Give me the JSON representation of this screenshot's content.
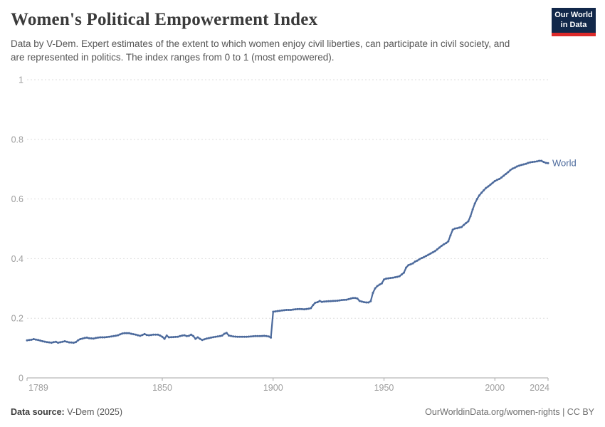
{
  "header": {
    "title": "Women's Political Empowerment Index",
    "subtitle": "Data by V-Dem. Expert estimates of the extent to which women enjoy civil liberties, can participate in civil society, and are represented in politics. The index ranges from 0 to 1 (most empowered).",
    "logo_line1": "Our World",
    "logo_line2": "in Data",
    "logo_bg_color": "#12284a",
    "logo_bar_color": "#dc2a2a"
  },
  "footer": {
    "data_source_label": "Data source:",
    "data_source_value": "V-Dem (2025)",
    "link_text": "OurWorldinData.org/women-rights | CC BY"
  },
  "chart_data": {
    "type": "line",
    "title": "Women's Political Empowerment Index",
    "xlabel": "",
    "ylabel": "",
    "xlim": [
      1789,
      2024
    ],
    "ylim": [
      0,
      1
    ],
    "grid": "dashed-horizontal",
    "legend_position": "end-of-line",
    "grid_color": "#dedede",
    "axis_color": "#a6a6a6",
    "x_ticks": [
      {
        "v": 1789,
        "label": "1789",
        "anchor": "start"
      },
      {
        "v": 1850,
        "label": "1850",
        "anchor": "middle"
      },
      {
        "v": 1900,
        "label": "1900",
        "anchor": "middle"
      },
      {
        "v": 1950,
        "label": "1950",
        "anchor": "middle"
      },
      {
        "v": 2000,
        "label": "2000",
        "anchor": "middle"
      },
      {
        "v": 2024,
        "label": "2024",
        "anchor": "end"
      }
    ],
    "y_ticks": [
      {
        "v": 0,
        "label": "0"
      },
      {
        "v": 0.2,
        "label": "0.2"
      },
      {
        "v": 0.4,
        "label": "0.4"
      },
      {
        "v": 0.6,
        "label": "0.6"
      },
      {
        "v": 0.8,
        "label": "0.8"
      },
      {
        "v": 1,
        "label": "1"
      }
    ],
    "series": [
      {
        "name": "World",
        "color": "#4c6a9c",
        "points": [
          [
            1789,
            0.126
          ],
          [
            1791,
            0.128
          ],
          [
            1792,
            0.13
          ],
          [
            1794,
            0.127
          ],
          [
            1796,
            0.123
          ],
          [
            1798,
            0.12
          ],
          [
            1800,
            0.118
          ],
          [
            1801,
            0.12
          ],
          [
            1802,
            0.121
          ],
          [
            1803,
            0.118
          ],
          [
            1805,
            0.121
          ],
          [
            1806,
            0.123
          ],
          [
            1808,
            0.119
          ],
          [
            1810,
            0.118
          ],
          [
            1811,
            0.12
          ],
          [
            1812,
            0.126
          ],
          [
            1813,
            0.13
          ],
          [
            1815,
            0.134
          ],
          [
            1816,
            0.135
          ],
          [
            1817,
            0.133
          ],
          [
            1819,
            0.132
          ],
          [
            1820,
            0.134
          ],
          [
            1822,
            0.136
          ],
          [
            1824,
            0.136
          ],
          [
            1826,
            0.138
          ],
          [
            1828,
            0.14
          ],
          [
            1830,
            0.143
          ],
          [
            1831,
            0.146
          ],
          [
            1832,
            0.149
          ],
          [
            1833,
            0.15
          ],
          [
            1835,
            0.15
          ],
          [
            1836,
            0.148
          ],
          [
            1838,
            0.145
          ],
          [
            1840,
            0.141
          ],
          [
            1841,
            0.144
          ],
          [
            1842,
            0.147
          ],
          [
            1843,
            0.144
          ],
          [
            1844,
            0.143
          ],
          [
            1846,
            0.145
          ],
          [
            1848,
            0.145
          ],
          [
            1849,
            0.142
          ],
          [
            1850,
            0.138
          ],
          [
            1851,
            0.131
          ],
          [
            1852,
            0.142
          ],
          [
            1853,
            0.136
          ],
          [
            1855,
            0.137
          ],
          [
            1857,
            0.138
          ],
          [
            1859,
            0.142
          ],
          [
            1860,
            0.143
          ],
          [
            1861,
            0.14
          ],
          [
            1862,
            0.141
          ],
          [
            1863,
            0.145
          ],
          [
            1864,
            0.14
          ],
          [
            1865,
            0.131
          ],
          [
            1866,
            0.136
          ],
          [
            1867,
            0.131
          ],
          [
            1868,
            0.127
          ],
          [
            1870,
            0.132
          ],
          [
            1872,
            0.135
          ],
          [
            1874,
            0.138
          ],
          [
            1876,
            0.14
          ],
          [
            1877,
            0.142
          ],
          [
            1878,
            0.148
          ],
          [
            1879,
            0.151
          ],
          [
            1880,
            0.142
          ],
          [
            1882,
            0.139
          ],
          [
            1884,
            0.138
          ],
          [
            1886,
            0.138
          ],
          [
            1888,
            0.138
          ],
          [
            1890,
            0.139
          ],
          [
            1892,
            0.14
          ],
          [
            1894,
            0.14
          ],
          [
            1896,
            0.141
          ],
          [
            1898,
            0.139
          ],
          [
            1899,
            0.135
          ],
          [
            1900,
            0.222
          ],
          [
            1902,
            0.224
          ],
          [
            1904,
            0.226
          ],
          [
            1906,
            0.228
          ],
          [
            1908,
            0.228
          ],
          [
            1910,
            0.23
          ],
          [
            1912,
            0.231
          ],
          [
            1914,
            0.23
          ],
          [
            1916,
            0.232
          ],
          [
            1917,
            0.234
          ],
          [
            1918,
            0.244
          ],
          [
            1919,
            0.252
          ],
          [
            1920,
            0.254
          ],
          [
            1921,
            0.258
          ],
          [
            1922,
            0.255
          ],
          [
            1923,
            0.256
          ],
          [
            1925,
            0.257
          ],
          [
            1927,
            0.258
          ],
          [
            1929,
            0.259
          ],
          [
            1931,
            0.261
          ],
          [
            1933,
            0.262
          ],
          [
            1934,
            0.264
          ],
          [
            1935,
            0.266
          ],
          [
            1936,
            0.268
          ],
          [
            1937,
            0.268
          ],
          [
            1938,
            0.266
          ],
          [
            1939,
            0.258
          ],
          [
            1940,
            0.256
          ],
          [
            1941,
            0.254
          ],
          [
            1942,
            0.253
          ],
          [
            1943,
            0.253
          ],
          [
            1944,
            0.257
          ],
          [
            1945,
            0.285
          ],
          [
            1946,
            0.3
          ],
          [
            1947,
            0.308
          ],
          [
            1948,
            0.313
          ],
          [
            1949,
            0.317
          ],
          [
            1950,
            0.33
          ],
          [
            1951,
            0.333
          ],
          [
            1952,
            0.334
          ],
          [
            1954,
            0.336
          ],
          [
            1956,
            0.339
          ],
          [
            1957,
            0.341
          ],
          [
            1958,
            0.347
          ],
          [
            1959,
            0.353
          ],
          [
            1960,
            0.37
          ],
          [
            1961,
            0.378
          ],
          [
            1962,
            0.381
          ],
          [
            1963,
            0.384
          ],
          [
            1964,
            0.39
          ],
          [
            1965,
            0.393
          ],
          [
            1966,
            0.398
          ],
          [
            1967,
            0.402
          ],
          [
            1968,
            0.405
          ],
          [
            1969,
            0.409
          ],
          [
            1970,
            0.413
          ],
          [
            1971,
            0.417
          ],
          [
            1972,
            0.421
          ],
          [
            1973,
            0.425
          ],
          [
            1974,
            0.431
          ],
          [
            1975,
            0.437
          ],
          [
            1976,
            0.443
          ],
          [
            1977,
            0.448
          ],
          [
            1978,
            0.452
          ],
          [
            1979,
            0.458
          ],
          [
            1980,
            0.478
          ],
          [
            1981,
            0.497
          ],
          [
            1982,
            0.501
          ],
          [
            1983,
            0.502
          ],
          [
            1984,
            0.504
          ],
          [
            1985,
            0.506
          ],
          [
            1986,
            0.513
          ],
          [
            1987,
            0.519
          ],
          [
            1988,
            0.525
          ],
          [
            1989,
            0.542
          ],
          [
            1990,
            0.565
          ],
          [
            1991,
            0.585
          ],
          [
            1992,
            0.6
          ],
          [
            1993,
            0.612
          ],
          [
            1994,
            0.621
          ],
          [
            1995,
            0.629
          ],
          [
            1996,
            0.637
          ],
          [
            1997,
            0.642
          ],
          [
            1998,
            0.648
          ],
          [
            1999,
            0.654
          ],
          [
            2000,
            0.66
          ],
          [
            2001,
            0.664
          ],
          [
            2002,
            0.667
          ],
          [
            2003,
            0.672
          ],
          [
            2004,
            0.678
          ],
          [
            2005,
            0.684
          ],
          [
            2006,
            0.69
          ],
          [
            2007,
            0.697
          ],
          [
            2008,
            0.702
          ],
          [
            2009,
            0.705
          ],
          [
            2010,
            0.709
          ],
          [
            2011,
            0.712
          ],
          [
            2012,
            0.714
          ],
          [
            2013,
            0.716
          ],
          [
            2014,
            0.718
          ],
          [
            2015,
            0.721
          ],
          [
            2016,
            0.723
          ],
          [
            2017,
            0.724
          ],
          [
            2018,
            0.725
          ],
          [
            2019,
            0.726
          ],
          [
            2020,
            0.728
          ],
          [
            2021,
            0.728
          ],
          [
            2022,
            0.724
          ],
          [
            2023,
            0.721
          ],
          [
            2024,
            0.72
          ]
        ]
      }
    ]
  }
}
